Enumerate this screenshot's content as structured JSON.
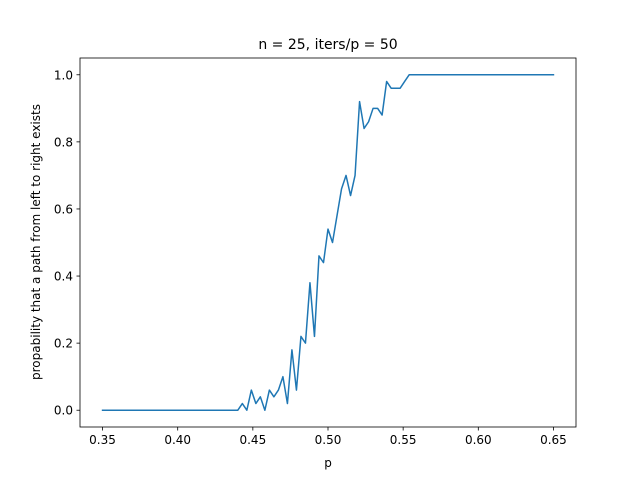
{
  "chart_data": {
    "type": "line",
    "title": "n = 25, iters/p = 50",
    "xlabel": "p",
    "ylabel": "propability that a path from left to right exists",
    "xlim": [
      0.335,
      0.665
    ],
    "ylim": [
      -0.05,
      1.05
    ],
    "xticks": [
      0.35,
      0.4,
      0.45,
      0.5,
      0.55,
      0.6,
      0.65
    ],
    "xtick_labels": [
      "0.35",
      "0.40",
      "0.45",
      "0.50",
      "0.55",
      "0.60",
      "0.65"
    ],
    "yticks": [
      0.0,
      0.2,
      0.4,
      0.6,
      0.8,
      1.0
    ],
    "ytick_labels": [
      "0.0",
      "0.2",
      "0.4",
      "0.6",
      "0.8",
      "1.0"
    ],
    "grid": false,
    "line_color": "#1f77b4",
    "series": [
      {
        "x": [
          0.35,
          0.353,
          0.356,
          0.359,
          0.362,
          0.365,
          0.368,
          0.371,
          0.374,
          0.377,
          0.38,
          0.383,
          0.386,
          0.389,
          0.392,
          0.395,
          0.398,
          0.401,
          0.404,
          0.407,
          0.41,
          0.413,
          0.416,
          0.419,
          0.422,
          0.425,
          0.428,
          0.431,
          0.434,
          0.437,
          0.44,
          0.443,
          0.446,
          0.449,
          0.452,
          0.455,
          0.458,
          0.461,
          0.464,
          0.467,
          0.47,
          0.473,
          0.476,
          0.479,
          0.482,
          0.485,
          0.488,
          0.491,
          0.494,
          0.497,
          0.5,
          0.503,
          0.506,
          0.509,
          0.512,
          0.515,
          0.518,
          0.521,
          0.524,
          0.527,
          0.53,
          0.533,
          0.536,
          0.539,
          0.542,
          0.545,
          0.548,
          0.551,
          0.554,
          0.557,
          0.56,
          0.563,
          0.566,
          0.569,
          0.572,
          0.575,
          0.578,
          0.581,
          0.584,
          0.587,
          0.59,
          0.593,
          0.596,
          0.599,
          0.602,
          0.605,
          0.608,
          0.611,
          0.614,
          0.617,
          0.62,
          0.623,
          0.626,
          0.629,
          0.632,
          0.635,
          0.638,
          0.641,
          0.644,
          0.647,
          0.65
        ],
        "y": [
          0,
          0,
          0,
          0,
          0,
          0,
          0,
          0,
          0,
          0,
          0,
          0,
          0,
          0,
          0,
          0,
          0,
          0,
          0,
          0,
          0,
          0,
          0,
          0,
          0,
          0,
          0,
          0,
          0,
          0,
          0,
          0.02,
          0,
          0.06,
          0.02,
          0.04,
          0,
          0.06,
          0.04,
          0.06,
          0.1,
          0.02,
          0.18,
          0.06,
          0.22,
          0.2,
          0.38,
          0.22,
          0.46,
          0.44,
          0.54,
          0.5,
          0.58,
          0.66,
          0.7,
          0.64,
          0.7,
          0.92,
          0.84,
          0.86,
          0.9,
          0.9,
          0.88,
          0.98,
          0.96,
          0.96,
          0.96,
          0.98,
          1,
          1,
          1,
          1,
          1,
          1,
          1,
          1,
          1,
          1,
          1,
          1,
          1,
          1,
          1,
          1,
          1,
          1,
          1,
          1,
          1,
          1,
          1,
          1,
          1,
          1,
          1,
          1,
          1,
          1,
          1,
          1,
          1
        ]
      }
    ]
  }
}
